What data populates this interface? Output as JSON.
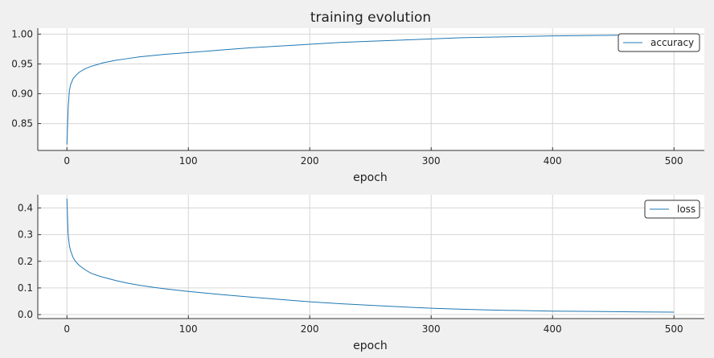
{
  "figure": {
    "title": "training evolution",
    "background": "#f0f0f0",
    "plot_background": "#ffffff",
    "line_color": "#1f77b4",
    "grid_color": "#d6d6d6"
  },
  "chart_data": [
    {
      "type": "line",
      "title": "training evolution",
      "xlabel": "epoch",
      "ylabel": "",
      "xlim": [
        -24,
        525
      ],
      "ylim": [
        0.805,
        1.01
      ],
      "xticks": [
        0,
        100,
        200,
        300,
        400,
        500
      ],
      "xtick_labels": [
        "0",
        "100",
        "200",
        "300",
        "400",
        "500"
      ],
      "yticks": [
        0.85,
        0.9,
        0.95,
        1.0
      ],
      "ytick_labels": [
        "0.85",
        "0.90",
        "0.95",
        "1.00"
      ],
      "grid": true,
      "legend": "top-right",
      "series": [
        {
          "name": "accuracy",
          "x": [
            0,
            1,
            2,
            3,
            5,
            7,
            10,
            15,
            20,
            25,
            30,
            40,
            50,
            60,
            70,
            80,
            100,
            125,
            150,
            175,
            200,
            225,
            250,
            275,
            300,
            325,
            350,
            375,
            400,
            425,
            450,
            475,
            500
          ],
          "y": [
            0.815,
            0.875,
            0.905,
            0.915,
            0.925,
            0.93,
            0.936,
            0.942,
            0.946,
            0.949,
            0.952,
            0.956,
            0.959,
            0.962,
            0.964,
            0.966,
            0.969,
            0.973,
            0.977,
            0.98,
            0.983,
            0.986,
            0.988,
            0.99,
            0.992,
            0.994,
            0.995,
            0.996,
            0.997,
            0.9975,
            0.998,
            0.9985,
            0.999
          ]
        }
      ]
    },
    {
      "type": "line",
      "title": "",
      "xlabel": "epoch",
      "ylabel": "",
      "xlim": [
        -24,
        525
      ],
      "ylim": [
        -0.015,
        0.45
      ],
      "xticks": [
        0,
        100,
        200,
        300,
        400,
        500
      ],
      "xtick_labels": [
        "0",
        "100",
        "200",
        "300",
        "400",
        "500"
      ],
      "yticks": [
        0.0,
        0.1,
        0.2,
        0.3,
        0.4
      ],
      "ytick_labels": [
        "0.0",
        "0.1",
        "0.2",
        "0.3",
        "0.4"
      ],
      "grid": true,
      "legend": "top-right",
      "series": [
        {
          "name": "loss",
          "x": [
            0,
            1,
            2,
            3,
            5,
            7,
            10,
            15,
            20,
            25,
            30,
            40,
            50,
            60,
            70,
            80,
            100,
            125,
            150,
            175,
            200,
            225,
            250,
            275,
            300,
            325,
            350,
            375,
            400,
            425,
            450,
            475,
            500
          ],
          "y": [
            0.435,
            0.3,
            0.26,
            0.24,
            0.215,
            0.2,
            0.185,
            0.168,
            0.155,
            0.147,
            0.14,
            0.128,
            0.118,
            0.11,
            0.103,
            0.097,
            0.087,
            0.076,
            0.066,
            0.057,
            0.048,
            0.041,
            0.035,
            0.029,
            0.024,
            0.02,
            0.017,
            0.015,
            0.013,
            0.012,
            0.011,
            0.01,
            0.009
          ]
        }
      ]
    }
  ]
}
